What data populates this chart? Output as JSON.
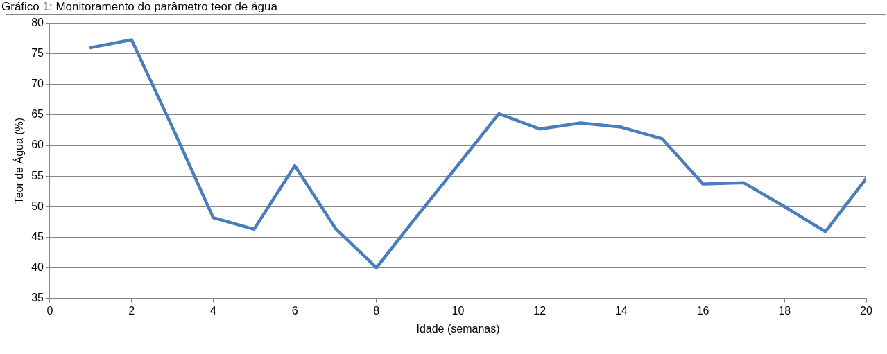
{
  "chart_data": {
    "type": "line",
    "title": "Gráfico 1: Monitoramento do parâmetro teor de água",
    "xlabel": "Idade (semanas)",
    "ylabel": "Teor de Água (%)",
    "x": [
      1,
      2,
      3,
      4,
      5,
      6,
      7,
      8,
      9,
      10,
      11,
      12,
      13,
      14,
      15,
      16,
      17,
      18,
      19,
      20
    ],
    "series": [
      {
        "color": "#4a7ebb",
        "values": [
          76,
          77.3,
          63,
          48.2,
          46.3,
          56.7,
          46.4,
          40,
          48.5,
          56.8,
          65.2,
          62.7,
          63.7,
          63,
          61.1,
          53.7,
          53.9,
          50,
          45.9,
          54.6
        ]
      }
    ],
    "xlim": [
      0,
      20
    ],
    "xticks": [
      0,
      2,
      4,
      6,
      8,
      10,
      12,
      14,
      16,
      18,
      20
    ],
    "ylim": [
      35,
      80
    ],
    "yticks": [
      35,
      40,
      45,
      50,
      55,
      60,
      65,
      70,
      75,
      80
    ],
    "grid": "y",
    "legend": false,
    "marker": "none",
    "line_style": "solid"
  }
}
